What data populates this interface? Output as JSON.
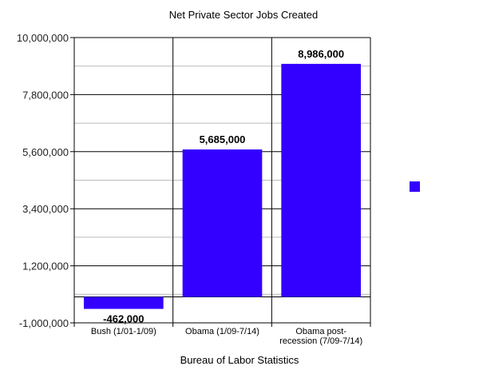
{
  "chart_data": {
    "type": "bar",
    "title": "Net Private Sector Jobs Created",
    "xlabel": "Bureau of Labor Statistics",
    "ylabel": "",
    "categories": [
      [
        "Bush (1/01-1/09)"
      ],
      [
        "Obama (1/09-7/14)"
      ],
      [
        "Obama post-",
        "recession (7/09-7/14)"
      ]
    ],
    "values": [
      -462000,
      5685000,
      8986000
    ],
    "data_labels": [
      "-462,000",
      "5,685,000",
      "8,986,000"
    ],
    "ylim": [
      -1000000,
      10000000
    ],
    "yticks": [
      -1000000,
      1200000,
      3400000,
      5600000,
      7800000,
      10000000
    ],
    "ytick_labels": [
      "-1,000,000",
      "1,200,000",
      "3,400,000",
      "5,600,000",
      "7,800,000",
      "10,000,000"
    ],
    "grid": true,
    "legend": "right",
    "bar_color": "#3300ff"
  }
}
